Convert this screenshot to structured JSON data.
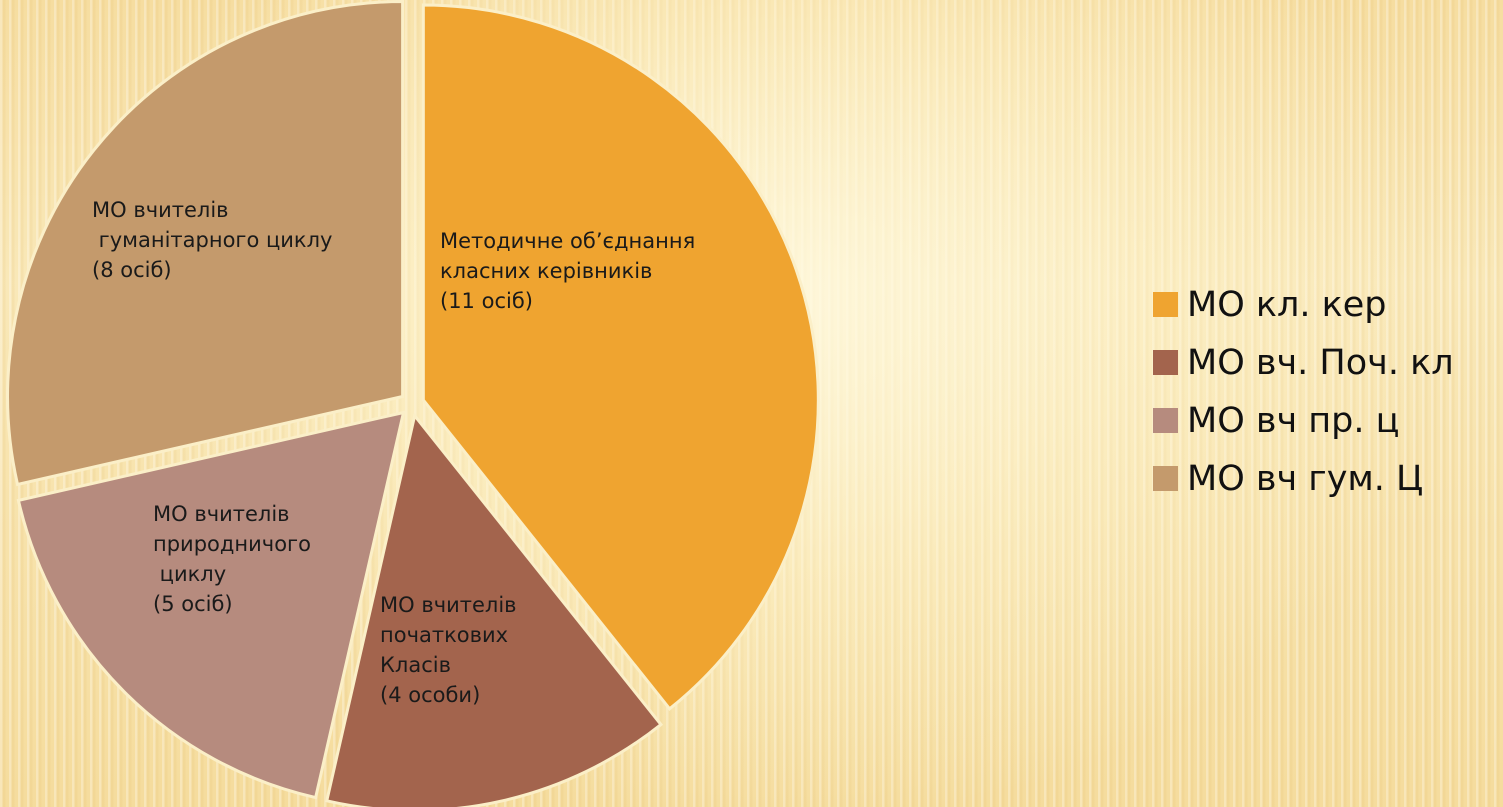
{
  "chart_data": {
    "type": "pie",
    "categories": [
      "МО кл. кер",
      "МО вч. Поч. кл",
      "МО вч пр. ц",
      "МО вч гум. Ц"
    ],
    "values": [
      11,
      4,
      5,
      8
    ],
    "slice_labels": [
      [
        "Методичне об’єднання",
        "класних керівників",
        "(11 осіб)"
      ],
      [
        "МО вчителів",
        "початкових",
        "Класів",
        "(4 особи)"
      ],
      [
        "МО вчителів",
        "природничого",
        " циклу",
        "(5 осіб)"
      ],
      [
        "МО вчителів",
        " гуманітарного циклу",
        "(8 осіб)"
      ]
    ],
    "colors": [
      "#efa430",
      "#a3644d",
      "#b68b7e",
      "#c49a6c"
    ],
    "start_angle_deg": 0,
    "direction": "clockwise",
    "legend_position": "right"
  }
}
